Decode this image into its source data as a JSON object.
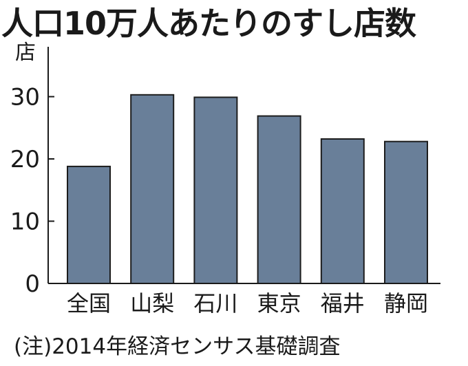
{
  "chart_data": {
    "type": "bar",
    "title": "人口10万人あたりのすし店数",
    "ylabel": "店",
    "xlabel": "",
    "categories": [
      "全国",
      "山梨",
      "石川",
      "東京",
      "福井",
      "静岡"
    ],
    "values": [
      18.8,
      30.3,
      29.9,
      26.9,
      23.2,
      22.8
    ],
    "ylim": [
      0,
      35
    ],
    "yticks": [
      0,
      10,
      20,
      30
    ],
    "grid": false,
    "note": "(注)2014年経済センサス基礎調査"
  },
  "colors": {
    "bar_fill": "#697f99",
    "bar_stroke": "#1c1c1c",
    "axis": "#1a1a1a",
    "text": "#1a1a1a"
  }
}
